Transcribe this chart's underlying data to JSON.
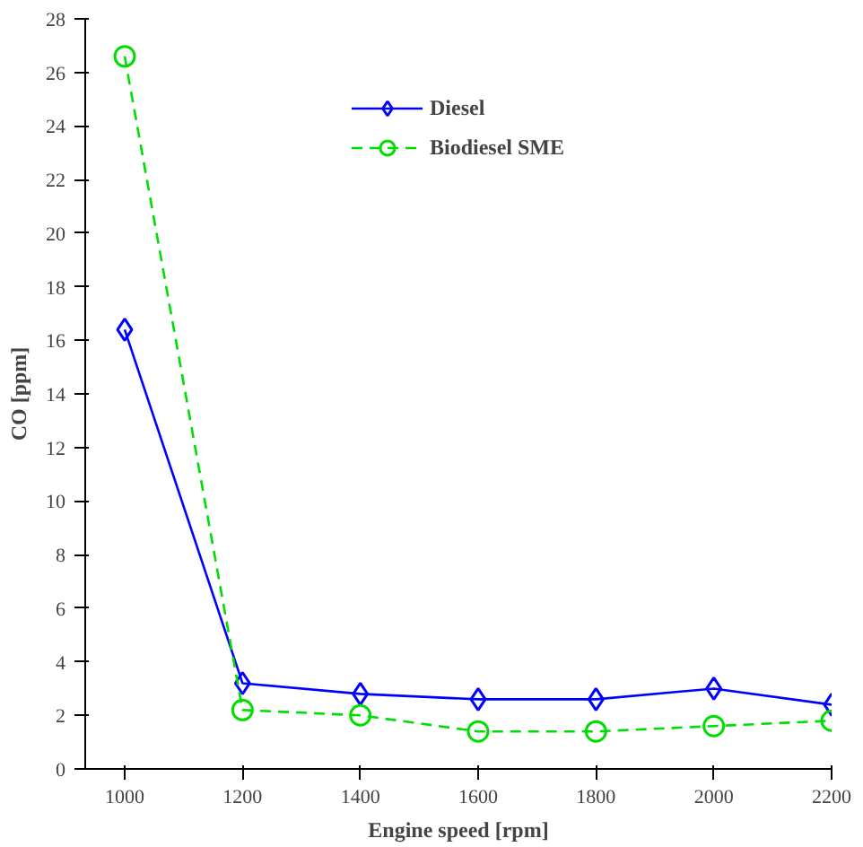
{
  "chart_data": {
    "type": "line",
    "xlabel": "Engine speed [rpm]",
    "ylabel": "CO [ppm]",
    "x": [
      1000,
      1200,
      1400,
      1600,
      1800,
      2000,
      2200
    ],
    "xlim": [
      933,
      2200
    ],
    "xticks": [
      1000,
      1200,
      1400,
      1600,
      1800,
      2000,
      2200
    ],
    "ylim": [
      0,
      28
    ],
    "yticks": [
      0,
      2,
      4,
      6,
      8,
      10,
      12,
      14,
      16,
      18,
      20,
      22,
      24,
      26,
      28
    ],
    "grid": false,
    "legend": "top",
    "series": [
      {
        "name": "Diesel",
        "color": "#0000ff",
        "values": [
          16.4,
          3.2,
          2.8,
          2.6,
          2.6,
          3.0,
          2.4
        ],
        "marker": "diamond",
        "line_style": "solid"
      },
      {
        "name": "Biodiesel SME",
        "color": "#00dd00",
        "values": [
          26.6,
          2.2,
          2.0,
          1.4,
          1.4,
          1.6,
          1.8
        ],
        "marker": "circle",
        "line_style": "dashed"
      }
    ]
  }
}
